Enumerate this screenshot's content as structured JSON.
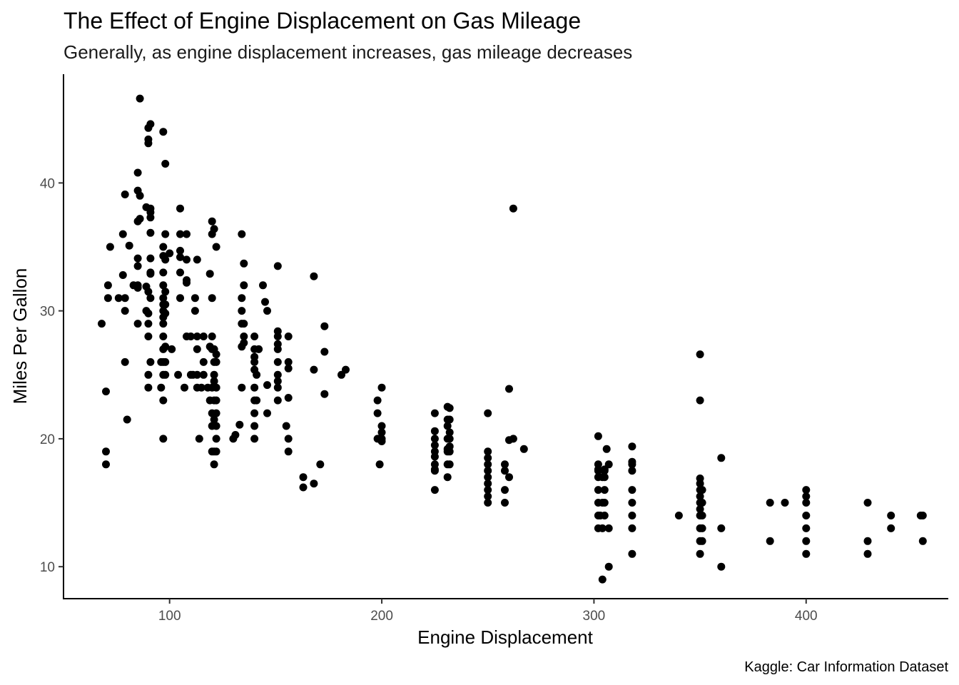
{
  "chart_data": {
    "type": "scatter",
    "title": "The Effect of Engine Displacement on Gas Mileage",
    "subtitle": "Generally, as engine displacement increases, gas mileage decreases",
    "xlabel": "Engine Displacement",
    "ylabel": "Miles Per Gallon",
    "caption": "Kaggle: Car Information Dataset",
    "xlim": [
      50,
      467
    ],
    "ylim": [
      7.5,
      48.5
    ],
    "x_ticks": [
      100,
      200,
      300,
      400
    ],
    "y_ticks": [
      10,
      20,
      30,
      40
    ],
    "grid": false,
    "point_color": "#000000",
    "points": [
      [
        68,
        29
      ],
      [
        70,
        18
      ],
      [
        70,
        19
      ],
      [
        70,
        23.7
      ],
      [
        71,
        32
      ],
      [
        71,
        31
      ],
      [
        72,
        35
      ],
      [
        76,
        31
      ],
      [
        78,
        36
      ],
      [
        78,
        32.8
      ],
      [
        79,
        31
      ],
      [
        79,
        30
      ],
      [
        79,
        26
      ],
      [
        79,
        39.1
      ],
      [
        80,
        21.5
      ],
      [
        81,
        35.1
      ],
      [
        83,
        32
      ],
      [
        85,
        32
      ],
      [
        85,
        29
      ],
      [
        85,
        31.8
      ],
      [
        85,
        33.5
      ],
      [
        85,
        34.1
      ],
      [
        85,
        37
      ],
      [
        85,
        39.4
      ],
      [
        85,
        40.8
      ],
      [
        86,
        46.6
      ],
      [
        86,
        37.2
      ],
      [
        86,
        39
      ],
      [
        89,
        31.9
      ],
      [
        89,
        30
      ],
      [
        89,
        38.1
      ],
      [
        90,
        29.8
      ],
      [
        90,
        43.1
      ],
      [
        90,
        43.4
      ],
      [
        90,
        44.3
      ],
      [
        90,
        24
      ],
      [
        90,
        25
      ],
      [
        90,
        28
      ],
      [
        90,
        29
      ],
      [
        90,
        31.5
      ],
      [
        91,
        32.9
      ],
      [
        91,
        33
      ],
      [
        91,
        34.1
      ],
      [
        91,
        36.1
      ],
      [
        91,
        37.3
      ],
      [
        91,
        38
      ],
      [
        91,
        44.6
      ],
      [
        91,
        37.7
      ],
      [
        91,
        26
      ],
      [
        91,
        31
      ],
      [
        96,
        24
      ],
      [
        96,
        26
      ],
      [
        97,
        20
      ],
      [
        97,
        23
      ],
      [
        97,
        25
      ],
      [
        97,
        26
      ],
      [
        97,
        27
      ],
      [
        97,
        28
      ],
      [
        97,
        29
      ],
      [
        97,
        29.5
      ],
      [
        97,
        30
      ],
      [
        97,
        30.5
      ],
      [
        97,
        31
      ],
      [
        97,
        32
      ],
      [
        97,
        33
      ],
      [
        97,
        34.3
      ],
      [
        97,
        35
      ],
      [
        97,
        44
      ],
      [
        98,
        25
      ],
      [
        98,
        26
      ],
      [
        98,
        27.2
      ],
      [
        98,
        29.8
      ],
      [
        98,
        30.5
      ],
      [
        98,
        31.5
      ],
      [
        98,
        34
      ],
      [
        98,
        36
      ],
      [
        98,
        41.5
      ],
      [
        100,
        34.5
      ],
      [
        101,
        27
      ],
      [
        104,
        25
      ],
      [
        105,
        34.2
      ],
      [
        105,
        38
      ],
      [
        105,
        34.7
      ],
      [
        105,
        33
      ],
      [
        105,
        31
      ],
      [
        105,
        36
      ],
      [
        107,
        24
      ],
      [
        108,
        32.4
      ],
      [
        108,
        28
      ],
      [
        108,
        36
      ],
      [
        108,
        32.2
      ],
      [
        108,
        34
      ],
      [
        110,
        25
      ],
      [
        110,
        28
      ],
      [
        111,
        25
      ],
      [
        112,
        30
      ],
      [
        112,
        31
      ],
      [
        113,
        24
      ],
      [
        113,
        25
      ],
      [
        113,
        34
      ],
      [
        113,
        27
      ],
      [
        113,
        28
      ],
      [
        114,
        20
      ],
      [
        115,
        24
      ],
      [
        116,
        25
      ],
      [
        116,
        28
      ],
      [
        116,
        26
      ],
      [
        118,
        24
      ],
      [
        119,
        23
      ],
      [
        119,
        32.9
      ],
      [
        119,
        27.2
      ],
      [
        120,
        37
      ],
      [
        120,
        31
      ],
      [
        120,
        24
      ],
      [
        120,
        27
      ],
      [
        120,
        28
      ],
      [
        120,
        21
      ],
      [
        120,
        22
      ],
      [
        120,
        19
      ],
      [
        120,
        36
      ],
      [
        121,
        27
      ],
      [
        121,
        26
      ],
      [
        121,
        25
      ],
      [
        121,
        23
      ],
      [
        121,
        21.5
      ],
      [
        121,
        36.4
      ],
      [
        121,
        19
      ],
      [
        121,
        24.5
      ],
      [
        121,
        18
      ],
      [
        122,
        22
      ],
      [
        122,
        20
      ],
      [
        122,
        26
      ],
      [
        122,
        23
      ],
      [
        122,
        35
      ],
      [
        122,
        19
      ],
      [
        122,
        26.6
      ],
      [
        122,
        21
      ],
      [
        122,
        24
      ],
      [
        130,
        20
      ],
      [
        131,
        20.3
      ],
      [
        133,
        21.1
      ],
      [
        134,
        27.2
      ],
      [
        134,
        30
      ],
      [
        134,
        31
      ],
      [
        134,
        29
      ],
      [
        134,
        36
      ],
      [
        134,
        24
      ],
      [
        135,
        27.5
      ],
      [
        135,
        33.7
      ],
      [
        135,
        32
      ],
      [
        135,
        28
      ],
      [
        135,
        29
      ],
      [
        140,
        24
      ],
      [
        140,
        23
      ],
      [
        140,
        22
      ],
      [
        140,
        25.4
      ],
      [
        140,
        26
      ],
      [
        140,
        26.4
      ],
      [
        140,
        21
      ],
      [
        140,
        20
      ],
      [
        140,
        27
      ],
      [
        140,
        28
      ],
      [
        141,
        23
      ],
      [
        141,
        25
      ],
      [
        142,
        27
      ],
      [
        144,
        32
      ],
      [
        145,
        30.7
      ],
      [
        146,
        24.2
      ],
      [
        146,
        30
      ],
      [
        146,
        22
      ],
      [
        151,
        28.4
      ],
      [
        151,
        23
      ],
      [
        151,
        24
      ],
      [
        151,
        24.5
      ],
      [
        151,
        25
      ],
      [
        151,
        26
      ],
      [
        151,
        27
      ],
      [
        151,
        28
      ],
      [
        151,
        33.5
      ],
      [
        151,
        27.4
      ],
      [
        155,
        21
      ],
      [
        156,
        19
      ],
      [
        156,
        26
      ],
      [
        156,
        23.2
      ],
      [
        156,
        20
      ],
      [
        156,
        28
      ],
      [
        156,
        25.5
      ],
      [
        163,
        17
      ],
      [
        163,
        16.2
      ],
      [
        168,
        16.5
      ],
      [
        168,
        32.7
      ],
      [
        168,
        25.4
      ],
      [
        171,
        18
      ],
      [
        173,
        23.5
      ],
      [
        173,
        26.8
      ],
      [
        173,
        28.8
      ],
      [
        181,
        25
      ],
      [
        183,
        25.4
      ],
      [
        198,
        20
      ],
      [
        198,
        23
      ],
      [
        198,
        22
      ],
      [
        199,
        20
      ],
      [
        199,
        18
      ],
      [
        200,
        20.5
      ],
      [
        200,
        21
      ],
      [
        200,
        24
      ],
      [
        200,
        19.8
      ],
      [
        200,
        20
      ],
      [
        225,
        19
      ],
      [
        225,
        18
      ],
      [
        225,
        20.6
      ],
      [
        225,
        16
      ],
      [
        225,
        17.5
      ],
      [
        225,
        19.5
      ],
      [
        225,
        22
      ],
      [
        225,
        20
      ],
      [
        225,
        18.6
      ],
      [
        225,
        17.6
      ],
      [
        231,
        19.2
      ],
      [
        231,
        21
      ],
      [
        231,
        22.5
      ],
      [
        231,
        20
      ],
      [
        231,
        18
      ],
      [
        231,
        19
      ],
      [
        231,
        21.5
      ],
      [
        231,
        17
      ],
      [
        232,
        19
      ],
      [
        232,
        18
      ],
      [
        232,
        20
      ],
      [
        232,
        22.4
      ],
      [
        232,
        21.5
      ],
      [
        232,
        20.5
      ],
      [
        232,
        19.4
      ],
      [
        250,
        15
      ],
      [
        250,
        16
      ],
      [
        250,
        17
      ],
      [
        250,
        18
      ],
      [
        250,
        19
      ],
      [
        250,
        18.5
      ],
      [
        250,
        17.5
      ],
      [
        250,
        22
      ],
      [
        250,
        15.5
      ],
      [
        250,
        16.5
      ],
      [
        258,
        15
      ],
      [
        258,
        16
      ],
      [
        258,
        17.5
      ],
      [
        258,
        18
      ],
      [
        260,
        23.9
      ],
      [
        260,
        19.9
      ],
      [
        260,
        17
      ],
      [
        262,
        38
      ],
      [
        262,
        20
      ],
      [
        267,
        19.2
      ],
      [
        302,
        20.2
      ],
      [
        302,
        14
      ],
      [
        302,
        13
      ],
      [
        302,
        15
      ],
      [
        302,
        16
      ],
      [
        302,
        17
      ],
      [
        302,
        17.5
      ],
      [
        302,
        18
      ],
      [
        302,
        17.6
      ],
      [
        303,
        14
      ],
      [
        304,
        15
      ],
      [
        304,
        17
      ],
      [
        304,
        13
      ],
      [
        304,
        9
      ],
      [
        305,
        17.5
      ],
      [
        305,
        16
      ],
      [
        305,
        15
      ],
      [
        305,
        17
      ],
      [
        305,
        14
      ],
      [
        305,
        17.6
      ],
      [
        306,
        19.2
      ],
      [
        307,
        10
      ],
      [
        307,
        13
      ],
      [
        307,
        18
      ],
      [
        318,
        11
      ],
      [
        318,
        13
      ],
      [
        318,
        14
      ],
      [
        318,
        15
      ],
      [
        318,
        16
      ],
      [
        318,
        17.5
      ],
      [
        318,
        18
      ],
      [
        318,
        18.2
      ],
      [
        318,
        19.4
      ],
      [
        340,
        14
      ],
      [
        350,
        26.6
      ],
      [
        350,
        23
      ],
      [
        350,
        16.9
      ],
      [
        350,
        16.5
      ],
      [
        350,
        16
      ],
      [
        350,
        15.5
      ],
      [
        350,
        15
      ],
      [
        350,
        14.5
      ],
      [
        350,
        14
      ],
      [
        350,
        13
      ],
      [
        350,
        12
      ],
      [
        350,
        11
      ],
      [
        351,
        13
      ],
      [
        351,
        14
      ],
      [
        351,
        15
      ],
      [
        351,
        16
      ],
      [
        351,
        12
      ],
      [
        360,
        10
      ],
      [
        360,
        13
      ],
      [
        360,
        18.5
      ],
      [
        383,
        15
      ],
      [
        383,
        12
      ],
      [
        390,
        15
      ],
      [
        400,
        11
      ],
      [
        400,
        12
      ],
      [
        400,
        13
      ],
      [
        400,
        14
      ],
      [
        400,
        15
      ],
      [
        400,
        15.5
      ],
      [
        400,
        16
      ],
      [
        429,
        15
      ],
      [
        429,
        12
      ],
      [
        429,
        11
      ],
      [
        440,
        14
      ],
      [
        440,
        13
      ],
      [
        454,
        14
      ],
      [
        455,
        14
      ],
      [
        455,
        12
      ]
    ]
  }
}
